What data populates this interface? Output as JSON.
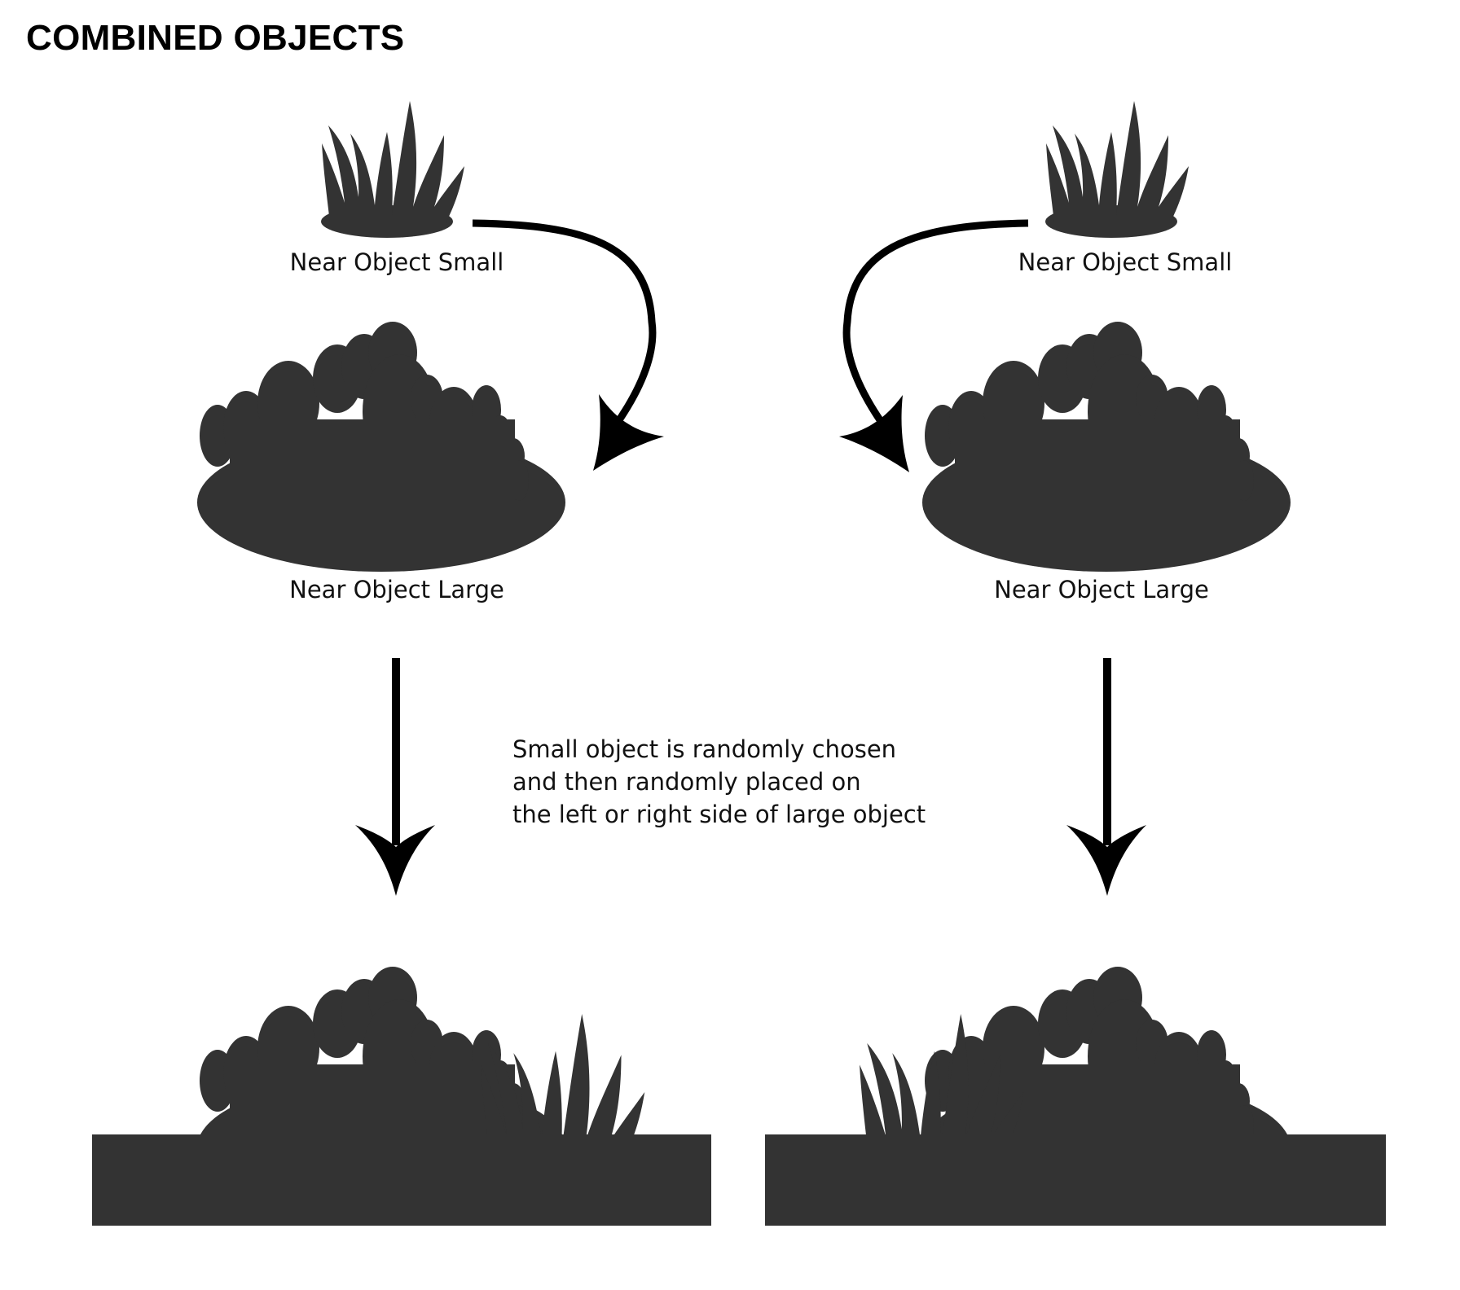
{
  "title": "COMBINED OBJECTS",
  "labels": {
    "small_left": "Near Object Small",
    "small_right": "Near Object Small",
    "large_left": "Near Object Large",
    "large_right": "Near Object Large"
  },
  "note": {
    "line1": "Small object is randomly chosen",
    "line2": "and then randomly placed on",
    "line3": "the left or right side of large object"
  },
  "colors": {
    "silhouette": "#333333",
    "arrow": "#000000",
    "background": "#ffffff"
  }
}
